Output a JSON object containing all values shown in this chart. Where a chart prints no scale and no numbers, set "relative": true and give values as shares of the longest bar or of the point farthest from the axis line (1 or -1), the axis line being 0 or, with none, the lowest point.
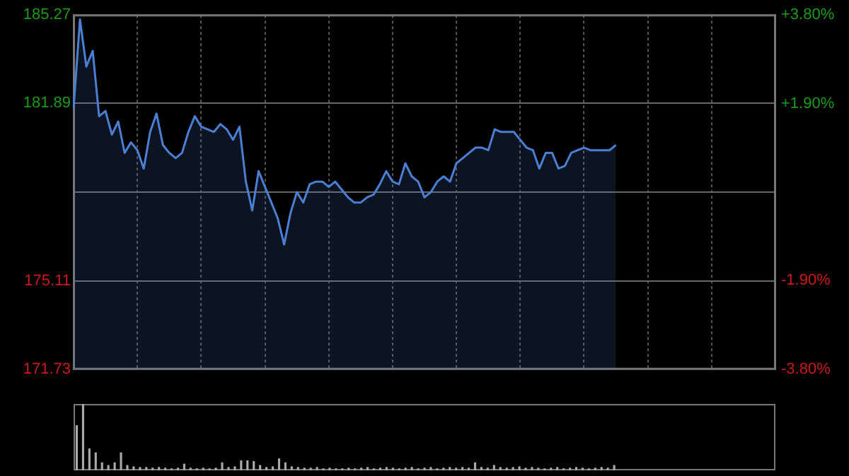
{
  "chart_data": [
    {
      "type": "area",
      "categories": [
        null,
        null,
        null,
        null,
        null,
        null,
        null,
        null,
        null,
        null,
        null,
        null,
        null,
        null,
        null,
        null,
        null,
        null,
        null,
        null,
        null,
        null,
        null,
        null,
        null,
        null,
        null,
        null,
        null,
        null,
        null,
        null,
        null,
        null,
        null,
        null,
        null,
        null,
        null,
        null,
        null,
        null,
        null,
        null,
        null,
        null,
        null,
        null,
        null,
        null,
        null,
        null,
        null,
        null,
        null,
        null,
        null,
        null,
        null,
        null,
        null,
        null,
        null,
        null,
        null,
        null,
        null,
        null,
        null,
        null,
        null,
        null,
        null,
        null,
        null,
        null,
        null,
        null,
        null,
        null,
        null,
        null,
        null,
        null,
        null,
        null,
        null,
        null,
        null,
        null,
        null,
        null,
        null,
        null,
        null,
        null,
        null,
        null,
        null,
        null,
        null,
        null,
        null,
        null,
        null,
        null,
        null,
        null,
        null,
        null,
        null
      ],
      "series": [
        {
          "color": "#4a7fd4",
          "values": [
            181.7,
            185.1,
            183.3,
            183.9,
            181.4,
            181.6,
            180.7,
            181.2,
            180.0,
            180.4,
            180.1,
            179.4,
            180.8,
            181.5,
            180.3,
            180.0,
            179.8,
            180.0,
            180.8,
            181.4,
            181.0,
            180.9,
            180.8,
            181.1,
            180.9,
            180.5,
            181.0,
            178.9,
            177.8,
            179.3,
            178.7,
            178.1,
            177.5,
            176.5,
            177.7,
            178.5,
            178.1,
            178.8,
            178.9,
            178.9,
            178.7,
            178.9,
            178.6,
            178.3,
            178.1,
            178.1,
            178.3,
            178.4,
            178.8,
            179.3,
            178.9,
            178.8,
            179.6,
            179.1,
            178.9,
            178.3,
            178.5,
            178.9,
            179.1,
            178.9,
            179.6,
            179.8,
            180.0,
            180.2,
            180.2,
            180.1,
            180.9,
            180.8,
            180.8,
            180.8,
            180.5,
            180.2,
            180.1,
            179.4,
            180.0,
            180.0,
            179.4,
            179.5,
            180.0,
            180.1,
            180.2,
            180.1,
            180.1,
            180.1,
            180.1,
            180.3,
            null,
            null,
            null,
            null,
            null,
            null,
            null,
            null,
            null,
            null,
            null,
            null,
            null,
            null,
            null,
            null,
            null,
            null,
            null,
            null,
            null,
            null,
            null,
            null,
            null
          ]
        }
      ],
      "ylim": [
        171.73,
        185.27
      ],
      "yticks": [
        171.73,
        175.11,
        {
          "value": 178.5,
          "label": null
        },
        181.89,
        185.27
      ],
      "y2lim": [
        -3.8,
        3.8
      ],
      "y2ticks": [
        {
          "value": -3.8,
          "label": "-3.80%"
        },
        {
          "value": -1.9,
          "label": "-1.90%"
        },
        {
          "value": 1.9,
          "label": "+1.90%"
        },
        {
          "value": 3.8,
          "label": "+3.80%"
        }
      ],
      "grid": true,
      "tick_labels": "y",
      "marker": "none",
      "line_style": "solid"
    },
    {
      "type": "bar",
      "relative": true,
      "categories": [
        null,
        null,
        null,
        null,
        null,
        null,
        null,
        null,
        null,
        null,
        null,
        null,
        null,
        null,
        null,
        null,
        null,
        null,
        null,
        null,
        null,
        null,
        null,
        null,
        null,
        null,
        null,
        null,
        null,
        null,
        null,
        null,
        null,
        null,
        null,
        null,
        null,
        null,
        null,
        null,
        null,
        null,
        null,
        null,
        null,
        null,
        null,
        null,
        null,
        null,
        null,
        null,
        null,
        null,
        null,
        null,
        null,
        null,
        null,
        null,
        null,
        null,
        null,
        null,
        null,
        null,
        null,
        null,
        null,
        null,
        null,
        null,
        null,
        null,
        null,
        null,
        null,
        null,
        null,
        null,
        null,
        null,
        null,
        null,
        null,
        null,
        null,
        null,
        null,
        null,
        null,
        null,
        null,
        null,
        null,
        null,
        null,
        null,
        null,
        null,
        null,
        null,
        null,
        null,
        null,
        null,
        null,
        null,
        null,
        null,
        null
      ],
      "values": [
        0.68,
        1,
        0.33,
        0.27,
        0.12,
        0.08,
        0.12,
        0.27,
        0.08,
        0.06,
        0.05,
        0.05,
        0.04,
        0.05,
        0.04,
        0.03,
        0.04,
        0.1,
        0.04,
        0.03,
        0.04,
        0.03,
        0.04,
        0.12,
        0.05,
        0.06,
        0.15,
        0.15,
        0.14,
        0.08,
        0.05,
        0.06,
        0.18,
        0.12,
        0.06,
        0.05,
        0.04,
        0.04,
        0.05,
        0.03,
        0.04,
        0.03,
        0.03,
        0.04,
        0.03,
        0.04,
        0.05,
        0.03,
        0.04,
        0.05,
        0.04,
        0.03,
        0.04,
        0.05,
        0.03,
        0.04,
        0.05,
        0.03,
        0.04,
        0.05,
        0.04,
        0.05,
        0.04,
        0.12,
        0.05,
        0.04,
        0.08,
        0.05,
        0.04,
        0.05,
        0.06,
        0.04,
        0.05,
        0.04,
        0.03,
        0.04,
        0.05,
        0.03,
        0.04,
        0.05,
        0.04,
        0.03,
        0.04,
        0.05,
        0.04,
        0.08,
        null,
        null,
        null,
        null,
        null,
        null,
        null,
        null,
        null,
        null,
        null,
        null,
        null,
        null,
        null,
        null,
        null,
        null,
        null,
        null,
        null,
        null,
        null,
        null,
        null
      ],
      "color": "#aaaaaa"
    }
  ]
}
